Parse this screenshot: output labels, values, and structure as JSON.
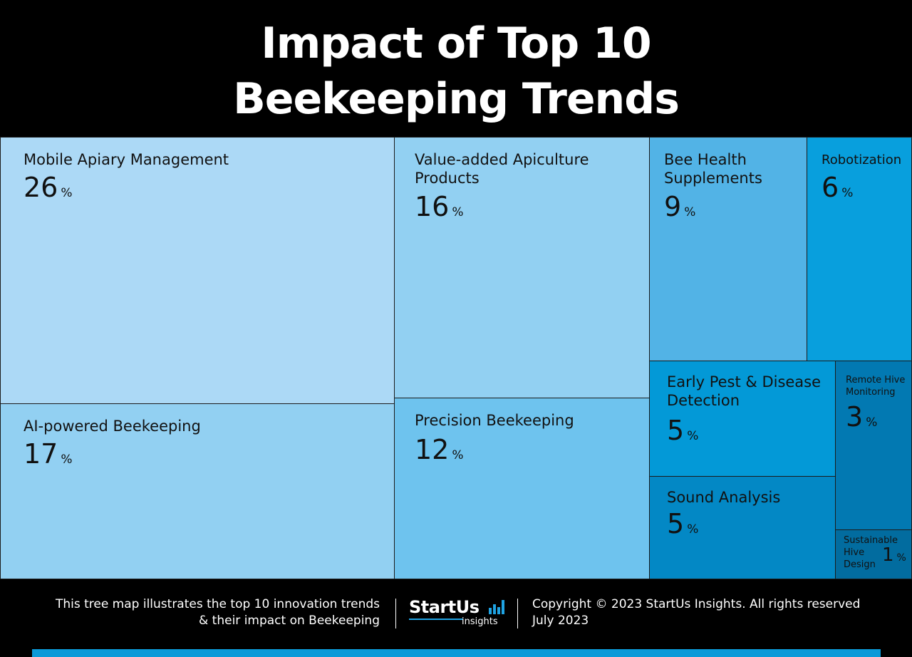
{
  "title": {
    "line1": "Impact of Top 10",
    "line2": "Beekeeping Trends"
  },
  "chart_data": {
    "type": "treemap",
    "unit": "%",
    "items": [
      {
        "label": "Mobile Apiary Management",
        "value": 26,
        "color": "#acd9f6"
      },
      {
        "label": "AI-powered Beekeeping",
        "value": 17,
        "color": "#92d0f2"
      },
      {
        "label": "Value-added Apiculture Products",
        "value": 16,
        "color": "#92d0f2"
      },
      {
        "label": "Precision Beekeeping",
        "value": 12,
        "color": "#6ec3ee"
      },
      {
        "label": "Bee Health Supplements",
        "value": 9,
        "color": "#52b3e6"
      },
      {
        "label": "Robotization",
        "value": 6,
        "color": "#089fdd"
      },
      {
        "label": "Early Pest & Disease Detection",
        "value": 5,
        "color": "#0399d7"
      },
      {
        "label": "Sound Analysis",
        "value": 5,
        "color": "#0388c5"
      },
      {
        "label": "Remote Hive Monitoring",
        "value": 3,
        "color": "#0279b2"
      },
      {
        "label": "Sustainable Hive Design",
        "value": 1,
        "color": "#026c9f"
      }
    ]
  },
  "footer": {
    "description_line1": "This tree map illustrates the top 10 innovation trends",
    "description_line2": "& their impact on Beekeeping",
    "logo_text": "StartUs",
    "logo_sub": "insights",
    "copyright": "Copyright © 2023 StartUs Insights. All rights reserved",
    "date": "July 2023"
  }
}
